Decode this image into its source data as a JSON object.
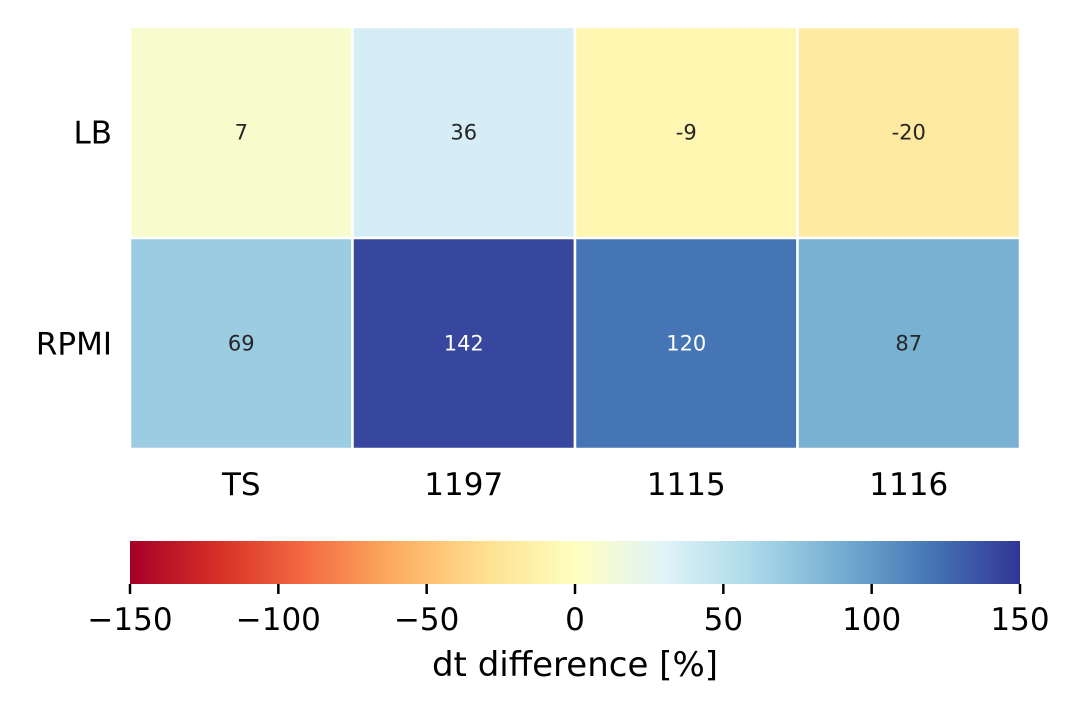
{
  "chart_data": {
    "type": "heatmap",
    "rows": [
      "LB",
      "RPMI"
    ],
    "columns": [
      "TS",
      "1197",
      "1115",
      "1116"
    ],
    "values": [
      [
        7,
        36,
        -9,
        -20
      ],
      [
        69,
        142,
        120,
        87
      ]
    ],
    "colormap": "RdYlBu",
    "vmin": -150,
    "vmax": 150,
    "colorbar": {
      "label": "dt difference [%]",
      "ticks": [
        -150,
        -100,
        -50,
        0,
        50,
        100,
        150
      ],
      "tick_labels": [
        "−150",
        "−100",
        "−50",
        "0",
        "50",
        "100",
        "150"
      ],
      "placement": "bottom"
    },
    "cell_text_color_dark": "#262626",
    "cell_text_color_light": "#ffffff",
    "grid_line_color": "#ffffff"
  }
}
